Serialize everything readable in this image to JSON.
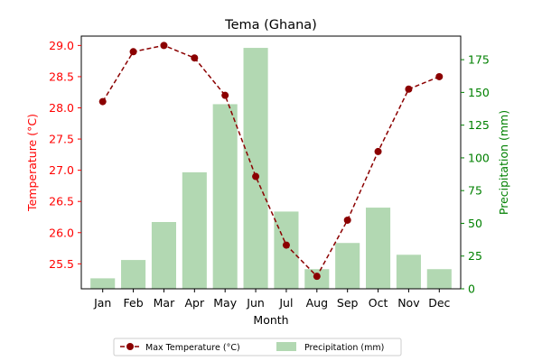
{
  "chart_data": {
    "type": "bar+line",
    "title": "Tema (Ghana)",
    "xlabel": "Month",
    "ylabel_left": "Temperature (°C)",
    "ylabel_right": "Precipitation (mm)",
    "categories": [
      "Jan",
      "Feb",
      "Mar",
      "Apr",
      "May",
      "Jun",
      "Jul",
      "Aug",
      "Sep",
      "Oct",
      "Nov",
      "Dec"
    ],
    "temperature": {
      "name": "Max Temperature (°C)",
      "values": [
        28.1,
        28.9,
        29.0,
        28.8,
        28.2,
        26.9,
        25.8,
        25.3,
        26.2,
        27.3,
        28.3,
        28.5
      ],
      "color": "#8b0000"
    },
    "precipitation": {
      "name": "Precipitation (mm)",
      "values": [
        8,
        22,
        51,
        89,
        141,
        184,
        59,
        15,
        35,
        62,
        26,
        15
      ],
      "color": "#b2d8b2"
    },
    "y_left": {
      "ylim": [
        25.1,
        29.15
      ],
      "ticks": [
        "25.5",
        "26.0",
        "26.5",
        "27.0",
        "27.5",
        "28.0",
        "28.5",
        "29.0"
      ],
      "color": "#ff0000"
    },
    "y_right": {
      "ylim": [
        0,
        193
      ],
      "ticks": [
        "0",
        "25",
        "50",
        "75",
        "100",
        "125",
        "150",
        "175"
      ],
      "color": "#008000"
    },
    "legend_position": "bottom-center",
    "grid": false
  }
}
